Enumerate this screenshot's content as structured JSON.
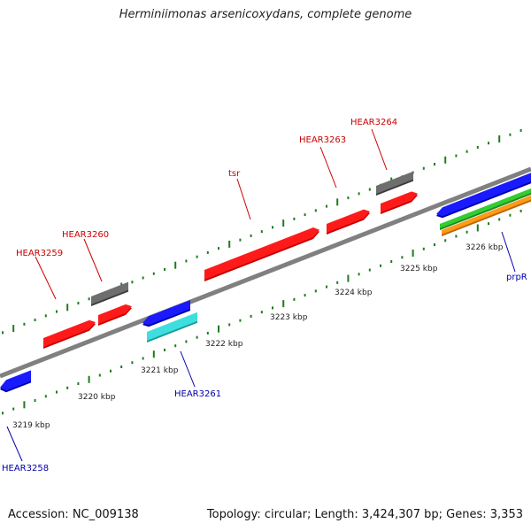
{
  "title": "Herminiimonas arsenicoxydans, complete genome",
  "footer": {
    "accession": "Accession: NC_009138",
    "summary": "Topology: circular; Length: 3,424,307 bp; Genes: 3,353"
  },
  "colors": {
    "backbone": "#808080",
    "tick": "#1f7a1f",
    "label_forward": "#cc0000",
    "label_reverse": "#0000aa",
    "scale_text": "#222222"
  },
  "scale_labels": [
    "3219 kbp",
    "3220 kbp",
    "3221 kbp",
    "3222 kbp",
    "3223 kbp",
    "3224 kbp",
    "3225 kbp",
    "3226 kbp"
  ],
  "features": [
    {
      "kind": "red-arrow"
    },
    {
      "kind": "red-arrow"
    },
    {
      "kind": "grey-box"
    },
    {
      "kind": "red-arrow"
    },
    {
      "kind": "red-arrow"
    },
    {
      "kind": "grey-box"
    },
    {
      "kind": "red-arrow"
    },
    {
      "kind": "blue-arrow"
    },
    {
      "kind": "blue-arrow"
    },
    {
      "kind": "cyan-box"
    },
    {
      "kind": "blue-arrow"
    },
    {
      "kind": "green-bar"
    },
    {
      "kind": "orange-bar"
    }
  ],
  "gene_labels_forward": [
    "HEAR3259",
    "HEAR3260",
    "tsr",
    "HEAR3263",
    "HEAR3264"
  ],
  "gene_labels_reverse": [
    "HEAR3258",
    "HEAR3261",
    "prpR"
  ]
}
